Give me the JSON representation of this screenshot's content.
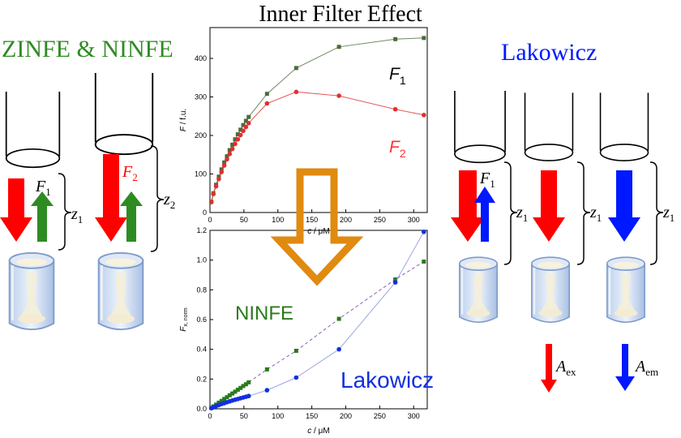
{
  "title": "Inner Filter Effect",
  "left_heading": "ZINFE & NINFE",
  "right_heading": "Lakowicz",
  "symbols": {
    "F": "F",
    "sub1": "1",
    "sub2": "2",
    "z": "z",
    "A": "A",
    "sub_ex": "ex",
    "sub_em": "em"
  },
  "arrow_colors": {
    "red": "#ff0000",
    "green": "#2e8b22",
    "blue": "#0018ff",
    "orange": "#e08a10"
  },
  "chart_data": [
    {
      "type": "scatter",
      "xlabel": "c / μM",
      "ylabel": "F / f.u.",
      "xlim": [
        0,
        320
      ],
      "ylim": [
        0,
        480
      ],
      "x_ticks": [
        0,
        50,
        100,
        150,
        200,
        250,
        300
      ],
      "y_ticks": [
        0,
        100,
        200,
        300,
        400
      ],
      "series": [
        {
          "name": "F1",
          "label_main": "F",
          "label_sub": "1",
          "color": "#4a6b3a",
          "marker": "square",
          "x": [
            2,
            5,
            9,
            13,
            17,
            21,
            25,
            29,
            33,
            37,
            41,
            45,
            49,
            53,
            57,
            84,
            127,
            190,
            273,
            315
          ],
          "y": [
            28,
            50,
            72,
            93,
            112,
            130,
            146,
            162,
            176,
            190,
            203,
            215,
            227,
            238,
            248,
            308,
            375,
            430,
            450,
            453
          ]
        },
        {
          "name": "F2",
          "label_main": "F",
          "label_sub": "2",
          "color": "#e03030",
          "marker": "circle",
          "x": [
            2,
            5,
            9,
            13,
            17,
            21,
            25,
            29,
            33,
            37,
            41,
            45,
            49,
            53,
            57,
            84,
            127,
            190,
            273,
            315
          ],
          "y": [
            27,
            48,
            68,
            87,
            105,
            122,
            138,
            152,
            165,
            178,
            190,
            201,
            212,
            222,
            232,
            283,
            313,
            303,
            268,
            253
          ]
        }
      ]
    },
    {
      "type": "scatter",
      "xlabel": "c / μM",
      "ylabel": "Fx, norm",
      "ylabel_main": "F",
      "ylabel_sub": "x, norm",
      "xlim": [
        0,
        320
      ],
      "ylim": [
        0,
        1.2
      ],
      "x_ticks": [
        0,
        50,
        100,
        150,
        200,
        250,
        300
      ],
      "y_ticks": [
        0.0,
        0.2,
        0.4,
        0.6,
        0.8,
        1.0,
        1.2
      ],
      "series": [
        {
          "name": "NINFE",
          "color": "#2a7a1a",
          "marker": "square",
          "fit_color": "#6a3aa0",
          "fit_dashed": true,
          "x": [
            2,
            5,
            9,
            13,
            17,
            21,
            25,
            29,
            33,
            37,
            41,
            45,
            49,
            53,
            57,
            84,
            127,
            190,
            273,
            315
          ],
          "y": [
            0.006,
            0.016,
            0.028,
            0.041,
            0.053,
            0.066,
            0.078,
            0.091,
            0.103,
            0.115,
            0.128,
            0.14,
            0.153,
            0.165,
            0.178,
            0.265,
            0.39,
            0.605,
            0.87,
            0.99
          ]
        },
        {
          "name": "Lakowicz",
          "color": "#1030e0",
          "marker": "circle",
          "fit_color": "#8090e0",
          "fit_dashed": false,
          "x": [
            2,
            5,
            9,
            13,
            17,
            21,
            25,
            29,
            33,
            37,
            41,
            45,
            49,
            53,
            57,
            84,
            127,
            190,
            273,
            315
          ],
          "y": [
            0.004,
            0.01,
            0.018,
            0.025,
            0.032,
            0.038,
            0.044,
            0.05,
            0.056,
            0.061,
            0.066,
            0.071,
            0.076,
            0.081,
            0.086,
            0.125,
            0.21,
            0.4,
            0.85,
            1.19
          ]
        }
      ]
    }
  ]
}
